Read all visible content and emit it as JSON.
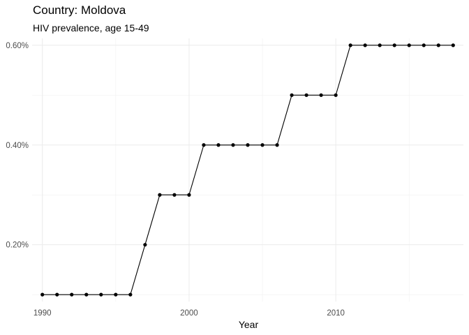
{
  "chart_data": {
    "type": "line",
    "title": "Country: Moldova",
    "subtitle": "HIV prevalence, age 15-49",
    "xlabel": "Year",
    "ylabel": "",
    "xlim": [
      1989.3,
      2018.7
    ],
    "ylim": [
      0.0862,
      0.6138
    ],
    "x_ticks": [
      1990,
      2000,
      2010
    ],
    "x_tick_labels": [
      "1990",
      "2000",
      "2010"
    ],
    "y_ticks": [
      0.2,
      0.4,
      0.6
    ],
    "y_tick_labels": [
      "0.20%",
      "0.40%",
      "0.60%"
    ],
    "grid": true,
    "legend": "none",
    "series": [
      {
        "x": [
          1990,
          1991,
          1992,
          1993,
          1994,
          1995,
          1996,
          1997,
          1998,
          1999,
          2000,
          2001,
          2002,
          2003,
          2004,
          2005,
          2006,
          2007,
          2008,
          2009,
          2010,
          2011,
          2012,
          2013,
          2014,
          2015,
          2016,
          2017,
          2018
        ],
        "values": [
          0.1,
          0.1,
          0.1,
          0.1,
          0.1,
          0.1,
          0.1,
          0.2,
          0.3,
          0.3,
          0.3,
          0.4,
          0.4,
          0.4,
          0.4,
          0.4,
          0.4,
          0.5,
          0.5,
          0.5,
          0.5,
          0.6,
          0.6,
          0.6,
          0.6,
          0.6,
          0.6,
          0.6,
          0.6
        ]
      }
    ]
  }
}
